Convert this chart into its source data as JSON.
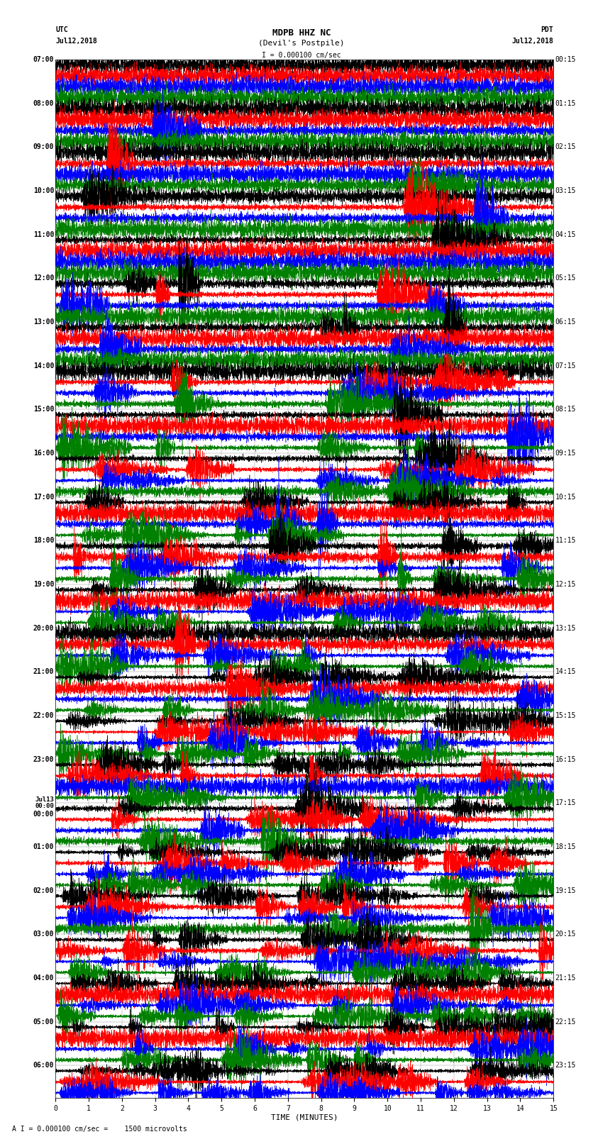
{
  "title_line1": "MDPB HHZ NC",
  "title_line2": "(Devil's Postpile)",
  "scale_text": "I = 0.000100 cm/sec",
  "footer_text": "A I = 0.000100 cm/sec =    1500 microvolts",
  "xlabel": "TIME (MINUTES)",
  "utc_label_line1": "UTC",
  "utc_label_line2": "Jul12,2018",
  "pdt_label_line1": "PDT",
  "pdt_label_line2": "Jul12,2018",
  "left_times_utc": [
    "07:00",
    "",
    "",
    "",
    "08:00",
    "",
    "",
    "",
    "09:00",
    "",
    "",
    "",
    "10:00",
    "",
    "",
    "",
    "11:00",
    "",
    "",
    "",
    "12:00",
    "",
    "",
    "",
    "13:00",
    "",
    "",
    "",
    "14:00",
    "",
    "",
    "",
    "15:00",
    "",
    "",
    "",
    "16:00",
    "",
    "",
    "",
    "17:00",
    "",
    "",
    "",
    "18:00",
    "",
    "",
    "",
    "19:00",
    "",
    "",
    "",
    "20:00",
    "",
    "",
    "",
    "21:00",
    "",
    "",
    "",
    "22:00",
    "",
    "",
    "",
    "23:00",
    "",
    "",
    "",
    "Jul13",
    "00:00",
    "",
    "",
    "01:00",
    "",
    "",
    "",
    "02:00",
    "",
    "",
    "",
    "03:00",
    "",
    "",
    "",
    "04:00",
    "",
    "",
    "",
    "05:00",
    "",
    "",
    "",
    "06:00",
    "",
    ""
  ],
  "right_times_pdt": [
    "00:15",
    "",
    "",
    "",
    "01:15",
    "",
    "",
    "",
    "02:15",
    "",
    "",
    "",
    "03:15",
    "",
    "",
    "",
    "04:15",
    "",
    "",
    "",
    "05:15",
    "",
    "",
    "",
    "06:15",
    "",
    "",
    "",
    "07:15",
    "",
    "",
    "",
    "08:15",
    "",
    "",
    "",
    "09:15",
    "",
    "",
    "",
    "10:15",
    "",
    "",
    "",
    "11:15",
    "",
    "",
    "",
    "12:15",
    "",
    "",
    "",
    "13:15",
    "",
    "",
    "",
    "14:15",
    "",
    "",
    "",
    "15:15",
    "",
    "",
    "",
    "16:15",
    "",
    "",
    "",
    "17:15",
    "",
    "",
    "",
    "18:15",
    "",
    "",
    "",
    "19:15",
    "",
    "",
    "",
    "20:15",
    "",
    "",
    "",
    "21:15",
    "",
    "",
    "",
    "22:15",
    "",
    "",
    "",
    "23:15",
    "",
    ""
  ],
  "colors": [
    "black",
    "red",
    "blue",
    "green"
  ],
  "n_rows": 95,
  "minutes": 15,
  "background_color": "white",
  "grid_color": "#888888",
  "font_size_title": 9,
  "font_size_labels": 7,
  "font_size_axis": 7
}
